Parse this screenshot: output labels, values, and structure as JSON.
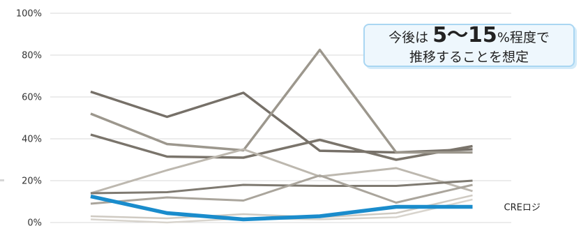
{
  "chart_data": {
    "type": "line",
    "title": "",
    "xlabel": "",
    "ylabel": "",
    "ylim": [
      0,
      100
    ],
    "y_ticks": [
      "0%",
      "20%",
      "40%",
      "60%",
      "80%",
      "100%"
    ],
    "grid": true,
    "x": [
      1,
      2,
      3,
      4,
      5,
      6
    ],
    "series": [
      {
        "color": "#767068",
        "width": 3.5,
        "values": [
          62.5,
          50.5,
          62.0,
          34.3,
          33.5,
          35.0
        ]
      },
      {
        "color": "#7a746b",
        "width": 3.5,
        "values": [
          42.0,
          31.5,
          31.0,
          39.5,
          30.0,
          36.5
        ]
      },
      {
        "color": "#9c978d",
        "width": 3.5,
        "values": [
          52.0,
          37.5,
          34.5,
          82.5,
          33.5,
          33.5
        ]
      },
      {
        "color": "#bdb8af",
        "width": 3.0,
        "values": [
          14.0,
          25.0,
          35.0,
          22.0,
          26.0,
          15.0
        ]
      },
      {
        "color": "#7f7a71",
        "width": 3.0,
        "values": [
          14.0,
          14.5,
          18.0,
          17.5,
          17.5,
          20.0
        ]
      },
      {
        "color": "#aaa59c",
        "width": 3.0,
        "values": [
          9.0,
          12.0,
          10.5,
          22.5,
          9.5,
          18.0
        ]
      },
      {
        "color": "#cfcac2",
        "width": 2.5,
        "values": [
          3.0,
          2.0,
          4.0,
          2.5,
          4.5,
          13.0
        ]
      },
      {
        "color": "#d8d4cd",
        "width": 2.5,
        "values": [
          1.5,
          0.0,
          2.0,
          1.5,
          2.5,
          11.0
        ]
      },
      {
        "name": "CREロジ",
        "color": "#1a8ccc",
        "width": 5.5,
        "values": [
          12.5,
          4.5,
          1.5,
          3.0,
          7.5,
          7.5
        ]
      }
    ]
  },
  "callout": {
    "prefix": "今後は",
    "big_text": "5〜15",
    "suffix": "%程度で",
    "line2": "推移することを想定"
  }
}
